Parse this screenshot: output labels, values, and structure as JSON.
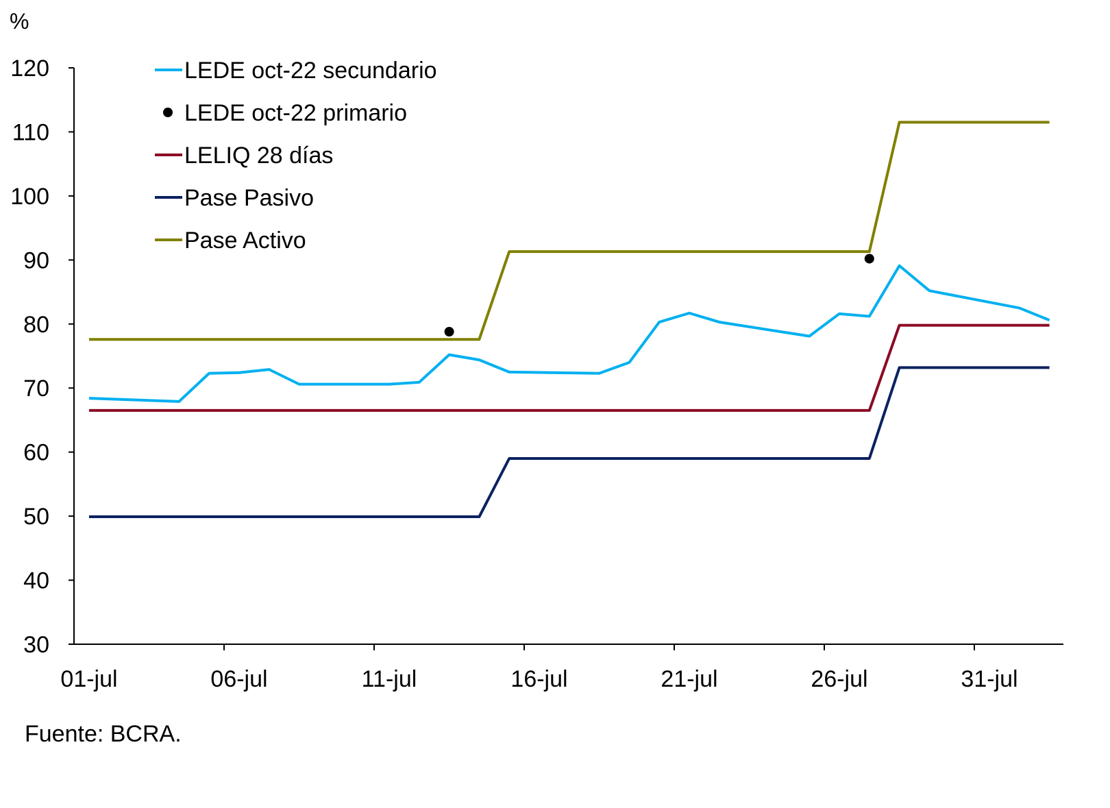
{
  "chart_data": {
    "type": "line",
    "ylabel": "%",
    "ylim": [
      30,
      120
    ],
    "yticks": [
      "30",
      "40",
      "50",
      "60",
      "70",
      "80",
      "90",
      "100",
      "110",
      "120"
    ],
    "xtick_labels": [
      "01-jul",
      "06-jul",
      "11-jul",
      "16-jul",
      "21-jul",
      "26-jul",
      "31-jul"
    ],
    "grid": false,
    "legend_position": "top-left",
    "x": [
      "01-jul",
      "04-jul",
      "05-jul",
      "06-jul",
      "07-jul",
      "08-jul",
      "11-jul",
      "12-jul",
      "13-jul",
      "14-jul",
      "15-jul",
      "18-jul",
      "19-jul",
      "20-jul",
      "21-jul",
      "22-jul",
      "25-jul",
      "26-jul",
      "27-jul",
      "28-jul",
      "29-jul",
      "01-ago",
      "02-ago"
    ],
    "series": [
      {
        "name": "LEDE oct-22 secundario",
        "kind": "line",
        "color": "#00B0F0",
        "values": [
          68.4,
          67.9,
          72.3,
          72.4,
          72.9,
          70.6,
          70.6,
          70.9,
          75.2,
          74.4,
          72.5,
          72.3,
          74.0,
          80.3,
          81.7,
          80.3,
          78.1,
          81.6,
          81.2,
          89.1,
          85.2,
          82.5,
          80.6
        ]
      },
      {
        "name": "LEDE oct-22 primario",
        "kind": "marker",
        "color": "#000000",
        "points": [
          {
            "x": "13-jul",
            "y": 78.8
          },
          {
            "x": "27-jul",
            "y": 90.2
          }
        ]
      },
      {
        "name": "LELIQ 28 días",
        "kind": "line",
        "color": "#8B0A24",
        "values": [
          66.5,
          66.5,
          66.5,
          66.5,
          66.5,
          66.5,
          66.5,
          66.5,
          66.5,
          66.5,
          66.5,
          66.5,
          66.5,
          66.5,
          66.5,
          66.5,
          66.5,
          66.5,
          66.5,
          79.8,
          79.8,
          79.8,
          79.8
        ]
      },
      {
        "name": "Pase Pasivo",
        "kind": "line",
        "color": "#0B2160",
        "values": [
          49.9,
          49.9,
          49.9,
          49.9,
          49.9,
          49.9,
          49.9,
          49.9,
          49.9,
          49.9,
          59.0,
          59.0,
          59.0,
          59.0,
          59.0,
          59.0,
          59.0,
          59.0,
          59.0,
          73.2,
          73.2,
          73.2,
          73.2
        ]
      },
      {
        "name": "Pase Activo",
        "kind": "line",
        "color": "#808000",
        "values": [
          77.6,
          77.6,
          77.6,
          77.6,
          77.6,
          77.6,
          77.6,
          77.6,
          77.6,
          77.6,
          91.3,
          91.3,
          91.3,
          91.3,
          91.3,
          91.3,
          91.3,
          91.3,
          91.3,
          111.5,
          111.5,
          111.5,
          111.5
        ]
      }
    ]
  },
  "source": "Fuente: BCRA."
}
